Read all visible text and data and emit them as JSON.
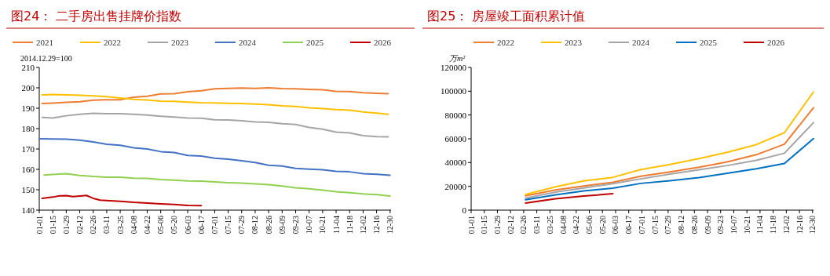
{
  "chart_data": [
    {
      "type": "line",
      "title": "图24：  二手房出售挂牌价指数",
      "ylabel": "2014.12.29=100",
      "xlim": [
        "--01-01",
        "--12-31"
      ],
      "ylim": [
        140,
        210
      ],
      "yticks": [
        140,
        150,
        160,
        170,
        180,
        190,
        200,
        210
      ],
      "xticks": [
        {
          "value": "--01-01",
          "label": "01-01"
        },
        {
          "value": "--01-15",
          "label": "01-15"
        },
        {
          "value": "--01-29",
          "label": "01-29"
        },
        {
          "value": "--02-12",
          "label": "02-12"
        },
        {
          "value": "--02-26",
          "label": "02-26"
        },
        {
          "value": "--03-11",
          "label": "03-11"
        },
        {
          "value": "--03-25",
          "label": "03-25"
        },
        {
          "value": "--04-08",
          "label": "04-08"
        },
        {
          "value": "--04-22",
          "label": "04-22"
        },
        {
          "value": "--05-06",
          "label": "05-06"
        },
        {
          "value": "--05-20",
          "label": "05-20"
        },
        {
          "value": "--06-03",
          "label": "06-03"
        },
        {
          "value": "--06-17",
          "label": "06-17"
        },
        {
          "value": "--07-01",
          "label": "07-01"
        },
        {
          "value": "--07-15",
          "label": "07-15"
        },
        {
          "value": "--07-29",
          "label": "07-29"
        },
        {
          "value": "--08-12",
          "label": "08-12"
        },
        {
          "value": "--08-26",
          "label": "08-26"
        },
        {
          "value": "--09-09",
          "label": "09-09"
        },
        {
          "value": "--09-23",
          "label": "09-23"
        },
        {
          "value": "--10-07",
          "label": "10-07"
        },
        {
          "value": "--10-21",
          "label": "10-21"
        },
        {
          "value": "--11-04",
          "label": "11-04"
        },
        {
          "value": "--11-18",
          "label": "11-18"
        },
        {
          "value": "--12-02",
          "label": "12-02"
        },
        {
          "value": "--12-16",
          "label": "12-16"
        },
        {
          "value": "--12-30",
          "label": "12-30"
        }
      ],
      "x": [
        "--01-04",
        "--01-15",
        "--01-29",
        "--02-12",
        "--02-26",
        "--03-11",
        "--03-25",
        "--04-08",
        "--04-22",
        "--05-06",
        "--05-20",
        "--06-03",
        "--06-17",
        "--07-01",
        "--07-15",
        "--07-29",
        "--08-12",
        "--08-26",
        "--09-09",
        "--09-23",
        "--10-07",
        "--10-21",
        "--11-04",
        "--11-18",
        "--12-02",
        "--12-16",
        "--12-28"
      ],
      "legend": "top",
      "grid": false,
      "marker": "none",
      "line_style": "solid",
      "series": [
        {
          "name": "2021",
          "color": "#ed7d31",
          "values": [
            192.3,
            192.5,
            192.9,
            193.2,
            193.9,
            194.1,
            194.1,
            195.4,
            195.9,
            197.0,
            197.1,
            198.1,
            198.6,
            199.5,
            199.7,
            199.9,
            199.7,
            200.0,
            199.6,
            199.5,
            199.2,
            199.0,
            198.3,
            198.2,
            197.6,
            197.3,
            197.1
          ]
        },
        {
          "name": "2022",
          "color": "#ffc000",
          "values": [
            196.5,
            196.7,
            196.5,
            196.3,
            196.1,
            195.7,
            195.0,
            194.3,
            194.0,
            193.5,
            193.4,
            193.0,
            192.7,
            192.6,
            192.4,
            192.3,
            192.0,
            191.7,
            191.2,
            190.9,
            190.2,
            189.8,
            189.3,
            189.0,
            188.2,
            187.6,
            187.0
          ]
        },
        {
          "name": "2023",
          "color": "#a5a5a5",
          "values": [
            185.5,
            185.2,
            186.3,
            187.0,
            187.5,
            187.3,
            187.3,
            187.0,
            186.6,
            186.1,
            185.7,
            185.2,
            185.1,
            184.3,
            184.2,
            183.8,
            183.3,
            183.1,
            182.4,
            182.0,
            180.6,
            179.7,
            178.3,
            177.9,
            176.5,
            176.1,
            176.0
          ]
        },
        {
          "name": "2024",
          "color": "#4472c4",
          "x": [
            "--01-01",
            "--01-15",
            "--01-29",
            "--02-12",
            "--02-26",
            "--03-11",
            "--03-25",
            "--04-08",
            "--04-22",
            "--05-06",
            "--05-20",
            "--06-03",
            "--06-17",
            "--07-01",
            "--07-15",
            "--07-29",
            "--08-12",
            "--08-26",
            "--09-09",
            "--09-23",
            "--10-07",
            "--10-21",
            "--11-04",
            "--11-18",
            "--12-02",
            "--12-16",
            "--12-30"
          ],
          "values": [
            175.0,
            174.9,
            174.8,
            174.3,
            173.5,
            172.3,
            171.8,
            170.6,
            170.0,
            168.7,
            168.3,
            166.8,
            166.5,
            165.5,
            165.0,
            164.2,
            163.4,
            162.0,
            161.6,
            160.5,
            160.1,
            159.8,
            159.0,
            158.8,
            157.9,
            157.6,
            157.1
          ]
        },
        {
          "name": "2025",
          "color": "#92d050",
          "x": [
            "--01-06",
            "--01-15",
            "--01-29",
            "--02-12",
            "--02-26",
            "--03-11",
            "--03-25",
            "--04-08",
            "--04-22",
            "--05-06",
            "--05-20",
            "--06-03",
            "--06-17",
            "--07-01",
            "--07-15",
            "--07-29",
            "--08-12",
            "--08-26",
            "--09-09",
            "--09-23",
            "--10-07",
            "--10-21",
            "--11-04",
            "--11-18",
            "--12-02",
            "--12-16",
            "--12-30"
          ],
          "values": [
            157.2,
            157.5,
            157.9,
            157.0,
            156.5,
            156.2,
            156.2,
            155.7,
            155.6,
            155.0,
            154.7,
            154.3,
            154.2,
            153.8,
            153.5,
            153.3,
            152.9,
            152.5,
            151.8,
            151.0,
            150.5,
            149.8,
            149.0,
            148.6,
            148.0,
            147.6,
            146.9
          ]
        },
        {
          "name": "2026",
          "color": "#c00000",
          "x": [
            "--01-04",
            "--01-15",
            "--01-22",
            "--01-29",
            "--02-05",
            "--02-19",
            "--02-26",
            "--03-04",
            "--03-18",
            "--03-25",
            "--04-08",
            "--04-22",
            "--05-06",
            "--05-20",
            "--06-03",
            "--06-17"
          ],
          "values": [
            145.8,
            146.4,
            147.0,
            147.1,
            146.6,
            147.2,
            145.8,
            144.9,
            144.5,
            144.3,
            143.8,
            143.5,
            143.1,
            142.8,
            142.3,
            142.2
          ]
        }
      ]
    },
    {
      "type": "line",
      "title": "图25：  房屋竣工面积累计值",
      "ylabel": "万m²",
      "xlim": [
        "--01-01",
        "--12-31"
      ],
      "ylim": [
        0,
        120000
      ],
      "yticks": [
        0,
        20000,
        40000,
        60000,
        80000,
        100000,
        120000
      ],
      "xticks": [
        {
          "value": "--01-01",
          "label": "01-01"
        },
        {
          "value": "--01-15",
          "label": "01-15"
        },
        {
          "value": "--01-29",
          "label": "01-29"
        },
        {
          "value": "--02-12",
          "label": "02-12"
        },
        {
          "value": "--02-26",
          "label": "02-26"
        },
        {
          "value": "--03-11",
          "label": "03-11"
        },
        {
          "value": "--03-25",
          "label": "03-25"
        },
        {
          "value": "--04-08",
          "label": "04-08"
        },
        {
          "value": "--04-22",
          "label": "04-22"
        },
        {
          "value": "--05-06",
          "label": "05-06"
        },
        {
          "value": "--05-20",
          "label": "05-20"
        },
        {
          "value": "--06-03",
          "label": "06-03"
        },
        {
          "value": "--06-17",
          "label": "06-17"
        },
        {
          "value": "--07-01",
          "label": "07-01"
        },
        {
          "value": "--07-15",
          "label": "07-15"
        },
        {
          "value": "--07-29",
          "label": "07-29"
        },
        {
          "value": "--08-12",
          "label": "08-12"
        },
        {
          "value": "--08-26",
          "label": "08-26"
        },
        {
          "value": "--09-09",
          "label": "09-09"
        },
        {
          "value": "--09-23",
          "label": "09-23"
        },
        {
          "value": "--10-07",
          "label": "10-07"
        },
        {
          "value": "--10-21",
          "label": "10-21"
        },
        {
          "value": "--11-04",
          "label": "11-04"
        },
        {
          "value": "--11-18",
          "label": "11-18"
        },
        {
          "value": "--12-02",
          "label": "12-02"
        },
        {
          "value": "--12-16",
          "label": "12-16"
        },
        {
          "value": "--12-30",
          "label": "12-30"
        }
      ],
      "x": [
        "--02-28",
        "--03-31",
        "--04-30",
        "--05-31",
        "--06-30",
        "--07-31",
        "--08-31",
        "--09-30",
        "--10-31",
        "--11-30",
        "--12-31"
      ],
      "legend": "top",
      "grid": false,
      "marker": "none",
      "line_style": "solid",
      "series": [
        {
          "name": "2022",
          "color": "#ed7d31",
          "values": [
            12000,
            17000,
            20300,
            23400,
            28500,
            32100,
            36100,
            40600,
            46600,
            55500,
            86100
          ]
        },
        {
          "name": "2023",
          "color": "#ffc000",
          "values": [
            13200,
            19600,
            24500,
            27600,
            34100,
            38400,
            43300,
            48600,
            55100,
            65100,
            99400
          ]
        },
        {
          "name": "2024",
          "color": "#a5a5a5",
          "values": [
            10000,
            15200,
            18700,
            22300,
            26300,
            30300,
            33900,
            37500,
            41900,
            47900,
            73600
          ]
        },
        {
          "name": "2025",
          "color": "#0070c0",
          "values": [
            8700,
            12900,
            16100,
            18500,
            22500,
            24700,
            27400,
            31000,
            34800,
            39200,
            60200
          ]
        },
        {
          "name": "2026",
          "color": "#c00000",
          "x": [
            "--02-28",
            "--03-31",
            "--04-30",
            "--05-31"
          ],
          "values": [
            6000,
            9600,
            11800,
            13800
          ]
        }
      ]
    }
  ]
}
